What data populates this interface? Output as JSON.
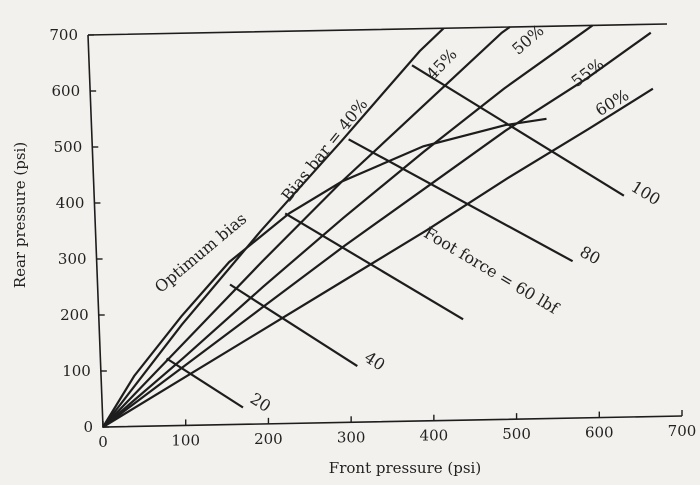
{
  "chart_data": {
    "type": "line",
    "title": "",
    "xlabel": "Front pressure (psi)",
    "ylabel": "Rear pressure (psi)",
    "xlim": [
      0,
      700
    ],
    "ylim": [
      0,
      700
    ],
    "xticks": [
      "0",
      "100",
      "200",
      "300",
      "400",
      "500",
      "600",
      "700"
    ],
    "yticks": [
      "0",
      "100",
      "200",
      "300",
      "400",
      "500",
      "600",
      "700"
    ],
    "grid": false,
    "legend": "none",
    "bias_lines": [
      {
        "label": "Bias bar = 40%",
        "points": [
          [
            0,
            0
          ],
          [
            100,
            180
          ],
          [
            200,
            345
          ],
          [
            300,
            500
          ],
          [
            400,
            660
          ],
          [
            430,
            700
          ]
        ]
      },
      {
        "label": "45%",
        "points": [
          [
            0,
            0
          ],
          [
            100,
            145
          ],
          [
            200,
            290
          ],
          [
            300,
            430
          ],
          [
            400,
            560
          ],
          [
            500,
            690
          ],
          [
            510,
            700
          ]
        ]
      },
      {
        "label": "50%",
        "points": [
          [
            0,
            0
          ],
          [
            100,
            120
          ],
          [
            200,
            245
          ],
          [
            300,
            365
          ],
          [
            400,
            480
          ],
          [
            500,
            590
          ],
          [
            600,
            690
          ],
          [
            610,
            700
          ]
        ]
      },
      {
        "label": "55%",
        "points": [
          [
            0,
            0
          ],
          [
            100,
            105
          ],
          [
            200,
            210
          ],
          [
            300,
            315
          ],
          [
            400,
            415
          ],
          [
            500,
            515
          ],
          [
            600,
            605
          ],
          [
            680,
            685
          ]
        ]
      },
      {
        "label": "60%",
        "points": [
          [
            0,
            0
          ],
          [
            100,
            85
          ],
          [
            200,
            170
          ],
          [
            300,
            255
          ],
          [
            400,
            340
          ],
          [
            500,
            430
          ],
          [
            600,
            515
          ],
          [
            680,
            585
          ]
        ]
      }
    ],
    "optimum_bias": {
      "label": "Optimum bias",
      "points": [
        [
          0,
          0
        ],
        [
          40,
          90
        ],
        [
          100,
          195
        ],
        [
          160,
          290
        ],
        [
          235,
          375
        ],
        [
          300,
          430
        ],
        [
          400,
          490
        ],
        [
          500,
          525
        ],
        [
          550,
          535
        ]
      ]
    },
    "foot_force_lines": [
      {
        "label": "20",
        "points": [
          [
            80,
            120
          ],
          [
            170,
            30
          ]
        ]
      },
      {
        "label": "40",
        "points": [
          [
            160,
            250
          ],
          [
            310,
            100
          ]
        ]
      },
      {
        "label": "60",
        "points": [
          [
            230,
            375
          ],
          [
            440,
            180
          ]
        ]
      },
      {
        "label": "80",
        "points": [
          [
            310,
            505
          ],
          [
            575,
            280
          ]
        ]
      },
      {
        "label": "100",
        "points": [
          [
            390,
            635
          ],
          [
            640,
            395
          ]
        ]
      }
    ],
    "foot_force_title": "Foot force = 60 lbf"
  }
}
